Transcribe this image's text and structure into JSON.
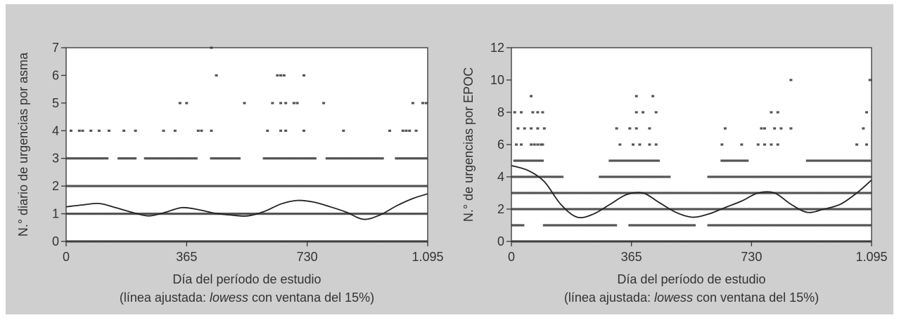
{
  "figure": {
    "background_color": "#cfcfcf",
    "plot_background_color": "#ffffff",
    "axis_color": "#333333",
    "point_color": "#555555",
    "line_color": "#222222"
  },
  "chart_data": [
    {
      "type": "scatter",
      "title": "",
      "xlabel": "Día del período de estudio",
      "xlabel_note_prefix": "(línea ajustada: ",
      "xlabel_note_italic": "lowess",
      "xlabel_note_suffix": " con ventana del 15%)",
      "ylabel": "N.° diario de urgencias por asma",
      "xlim": [
        0,
        1095
      ],
      "ylim": [
        0,
        7
      ],
      "x_ticks": [
        0,
        365,
        730,
        1095
      ],
      "x_tick_labels": [
        "0",
        "365",
        "730",
        "1.095"
      ],
      "y_ticks": [
        0,
        1,
        2,
        3,
        4,
        5,
        6,
        7
      ],
      "y_tick_labels": [
        "0",
        "1",
        "2",
        "3",
        "4",
        "5",
        "6",
        "7"
      ],
      "grid": false,
      "points_by_level": [
        {
          "y": 0,
          "x_ranges": [
            [
              0,
              1095
            ]
          ]
        },
        {
          "y": 1,
          "x_ranges": [
            [
              0,
              1095
            ]
          ]
        },
        {
          "y": 2,
          "x_ranges": [
            [
              0,
              1095
            ]
          ]
        },
        {
          "y": 3,
          "x_ranges": [
            [
              5,
              130
            ],
            [
              160,
              215
            ],
            [
              240,
              400
            ],
            [
              440,
              530
            ],
            [
              600,
              760
            ],
            [
              790,
              960
            ],
            [
              1000,
              1095
            ]
          ]
        },
        {
          "y": 4,
          "x": [
            15,
            40,
            50,
            75,
            100,
            130,
            175,
            210,
            295,
            330,
            400,
            410,
            440,
            610,
            650,
            665,
            720,
            840,
            980,
            1020,
            1030,
            1040,
            1060
          ]
        },
        {
          "y": 5,
          "x": [
            345,
            365,
            540,
            625,
            650,
            665,
            690,
            700,
            780,
            1050,
            1080,
            1090
          ]
        },
        {
          "y": 6,
          "x": [
            455,
            640,
            650,
            660,
            720
          ]
        },
        {
          "y": 7,
          "x": [
            440
          ]
        }
      ],
      "lowess": {
        "x": [
          0,
          50,
          100,
          150,
          200,
          250,
          300,
          350,
          400,
          450,
          500,
          550,
          600,
          650,
          700,
          750,
          800,
          850,
          900,
          950,
          1000,
          1050,
          1095
        ],
        "y": [
          1.25,
          1.32,
          1.37,
          1.22,
          1.05,
          0.92,
          1.05,
          1.22,
          1.15,
          1.02,
          0.95,
          0.92,
          1.08,
          1.35,
          1.48,
          1.42,
          1.25,
          1.05,
          0.8,
          0.95,
          1.28,
          1.55,
          1.72
        ]
      }
    },
    {
      "type": "scatter",
      "title": "",
      "xlabel": "Día del período de estudio",
      "xlabel_note_prefix": "(línea ajustada: ",
      "xlabel_note_italic": "lowess",
      "xlabel_note_suffix": " con ventana del 15%)",
      "ylabel": "N.° de urgencias por EPOC",
      "xlim": [
        0,
        1095
      ],
      "ylim": [
        0,
        12
      ],
      "x_ticks": [
        0,
        365,
        730,
        1095
      ],
      "x_tick_labels": [
        "0",
        "365",
        "730",
        "1.095"
      ],
      "y_ticks": [
        0,
        2,
        4,
        6,
        8,
        10,
        12
      ],
      "y_tick_labels": [
        "0",
        "2",
        "4",
        "6",
        "8",
        "10",
        "12"
      ],
      "grid": false,
      "points_by_level": [
        {
          "y": 0,
          "x_ranges": [
            [
              0,
              1095
            ]
          ]
        },
        {
          "y": 1,
          "x_ranges": [
            [
              0,
              40
            ],
            [
              100,
              320
            ],
            [
              360,
              560
            ],
            [
              600,
              1095
            ]
          ]
        },
        {
          "y": 2,
          "x_ranges": [
            [
              0,
              1095
            ]
          ]
        },
        {
          "y": 3,
          "x_ranges": [
            [
              0,
              1095
            ]
          ]
        },
        {
          "y": 4,
          "x_ranges": [
            [
              0,
              160
            ],
            [
              270,
              480
            ],
            [
              600,
              1095
            ]
          ]
        },
        {
          "y": 5,
          "x_ranges": [
            [
              10,
              100
            ],
            [
              300,
              450
            ],
            [
              640,
              720
            ],
            [
              900,
              1095
            ]
          ]
        },
        {
          "y": 6,
          "x": [
            15,
            30,
            60,
            70,
            80,
            90,
            95,
            330,
            370,
            390,
            420,
            440,
            640,
            700,
            750,
            770,
            790,
            810,
            1050,
            1080
          ]
        },
        {
          "y": 7,
          "x": [
            20,
            40,
            60,
            80,
            100,
            320,
            360,
            380,
            420,
            650,
            760,
            770,
            800,
            820,
            850,
            1070
          ]
        },
        {
          "y": 8,
          "x": [
            10,
            30,
            65,
            80,
            95,
            380,
            400,
            440,
            790,
            810,
            1080
          ]
        },
        {
          "y": 9,
          "x": [
            60,
            380,
            430
          ]
        },
        {
          "y": 10,
          "x": [
            850,
            1090
          ]
        }
      ],
      "lowess": {
        "x": [
          0,
          50,
          100,
          150,
          200,
          250,
          300,
          350,
          400,
          450,
          500,
          550,
          600,
          650,
          700,
          750,
          800,
          850,
          900,
          950,
          1000,
          1050,
          1095
        ],
        "y": [
          4.7,
          4.4,
          3.7,
          2.3,
          1.5,
          1.7,
          2.3,
          2.9,
          3.0,
          2.4,
          1.8,
          1.5,
          1.7,
          2.1,
          2.5,
          3.0,
          3.0,
          2.3,
          1.8,
          2.0,
          2.3,
          3.0,
          3.8
        ]
      }
    }
  ]
}
